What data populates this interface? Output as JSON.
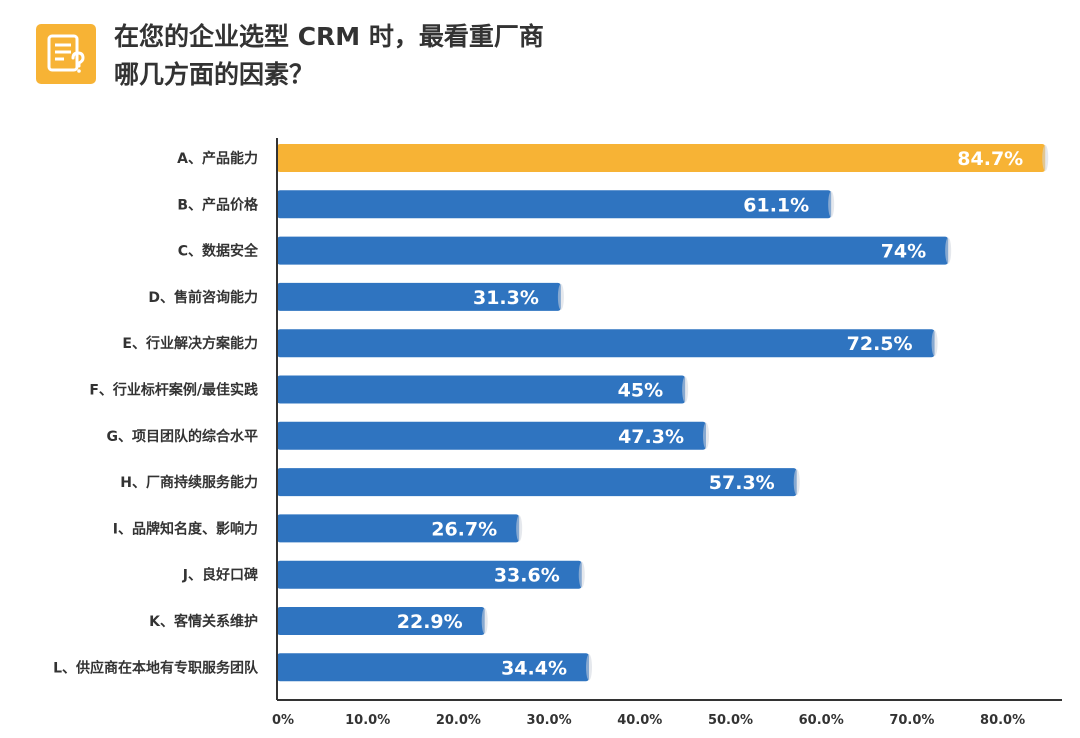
{
  "header": {
    "icon": "survey-question-icon",
    "title_line1": "在您的企业选型 CRM 时，最看重厂商",
    "title_line2": "哪几方面的因素？"
  },
  "colors": {
    "highlight_bar": "#f7b335",
    "bar": "#2f74c0",
    "axis": "#333333"
  },
  "chart_data": {
    "type": "bar",
    "orientation": "horizontal",
    "categories": [
      "A、产品能力",
      "B、产品价格",
      "C、数据安全",
      "D、售前咨询能力",
      "E、行业解决方案能力",
      "F、行业标杆案例/最佳实践",
      "G、项目团队的综合水平",
      "H、厂商持续服务能力",
      "I、品牌知名度、影响力",
      "J、良好口碑",
      "K、客情关系维护",
      "L、供应商在本地有专职服务团队"
    ],
    "values": [
      84.7,
      61.1,
      74,
      31.3,
      72.5,
      45,
      47.3,
      57.3,
      26.7,
      33.6,
      22.9,
      34.4
    ],
    "value_labels": [
      "84.7%",
      "61.1%",
      "74%",
      "31.3%",
      "72.5%",
      "45%",
      "47.3%",
      "57.3%",
      "26.7%",
      "33.6%",
      "22.9%",
      "34.4%"
    ],
    "highlight_index": 0,
    "xlim": [
      0,
      85
    ],
    "x_ticks": [
      0,
      10,
      20,
      30,
      40,
      50,
      60,
      70,
      80
    ],
    "x_tick_labels": [
      "0%",
      "10.0%",
      "20.0%",
      "30.0%",
      "40.0%",
      "50.0%",
      "60.0%",
      "70.0%",
      "80.0%"
    ],
    "grid": false,
    "legend": "none"
  }
}
